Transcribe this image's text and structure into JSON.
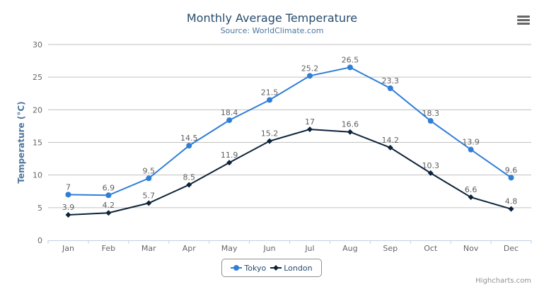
{
  "header": {
    "title": "Monthly Average Temperature",
    "subtitle": "Source: WorldClimate.com",
    "menu_icon": "hamburger-menu-icon"
  },
  "credits": "Highcharts.com",
  "chart_data": {
    "type": "line",
    "title": "Monthly Average Temperature",
    "subtitle": "Source: WorldClimate.com",
    "xlabel": "",
    "ylabel": "Temperature (°C)",
    "categories": [
      "Jan",
      "Feb",
      "Mar",
      "Apr",
      "May",
      "Jun",
      "Jul",
      "Aug",
      "Sep",
      "Oct",
      "Nov",
      "Dec"
    ],
    "ylim": [
      0,
      30
    ],
    "yticks": [
      0,
      5,
      10,
      15,
      20,
      25,
      30
    ],
    "grid": true,
    "legend": "bottom-center",
    "data_labels": true,
    "series": [
      {
        "name": "Tokyo",
        "color": "#2f7ed8",
        "marker": "circle",
        "values": [
          7,
          6.9,
          9.5,
          14.5,
          18.4,
          21.5,
          25.2,
          26.5,
          23.3,
          18.3,
          13.9,
          9.6
        ]
      },
      {
        "name": "London",
        "color": "#0d233a",
        "marker": "diamond",
        "values": [
          3.9,
          4.2,
          5.7,
          8.5,
          11.9,
          15.2,
          17,
          16.6,
          14.2,
          10.3,
          6.6,
          4.8
        ]
      }
    ]
  }
}
